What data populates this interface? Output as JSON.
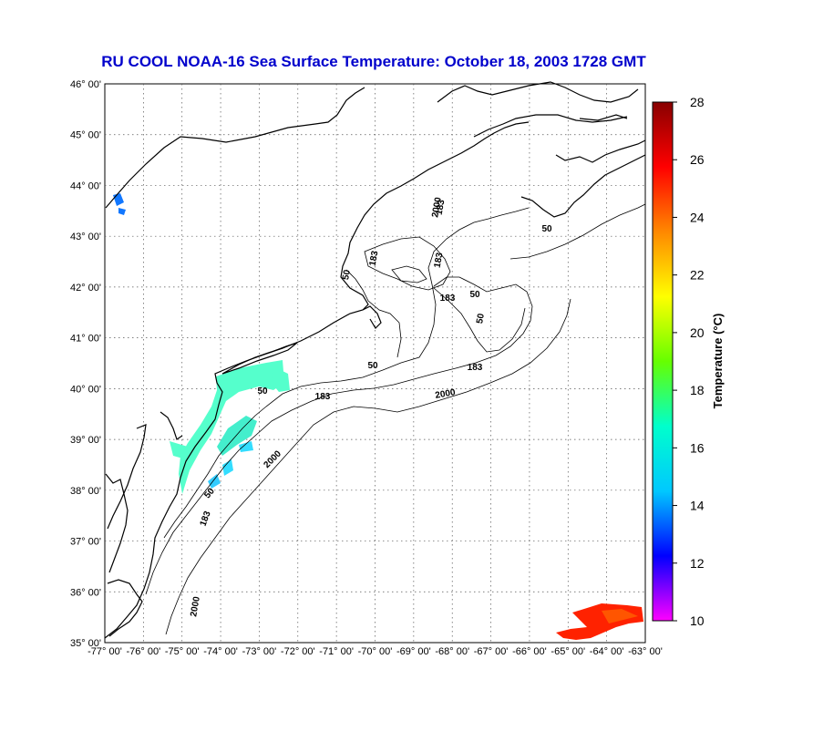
{
  "title": "RU COOL  NOAA-16  Sea Surface Temperature:  October 18, 2003 1728 GMT",
  "lat_labels": [
    "35° 00'",
    "36° 00'",
    "37° 00'",
    "38° 00'",
    "39° 00'",
    "40° 00'",
    "41° 00'",
    "42° 00'",
    "43° 00'",
    "44° 00'",
    "45° 00'",
    "46° 00'"
  ],
  "lon_labels": [
    "-77° 00'",
    "-76° 00'",
    "-75° 00'",
    "-74° 00'",
    "-73° 00'",
    "-72° 00'",
    "-71° 00'",
    "-70° 00'",
    "-69° 00'",
    "-68° 00'",
    "-67° 00'",
    "-66° 00'",
    "-65° 00'",
    "-64° 00'",
    "-63° 00'"
  ],
  "colorbar": {
    "label": "Temperature (°C)",
    "ticks": [
      "28",
      "26",
      "24",
      "22",
      "20",
      "18",
      "16",
      "14",
      "12",
      "10"
    ],
    "range": [
      10,
      28
    ],
    "colors": [
      "#ff00ff",
      "#0000ff",
      "#00c8ff",
      "#00ffcc",
      "#66ff00",
      "#ffff00",
      "#ff8800",
      "#ff0000",
      "#880000"
    ]
  },
  "isobath_labels": [
    "50",
    "183",
    "2000",
    "50",
    "183",
    "50",
    "183",
    "50",
    "183",
    "2000",
    "183",
    "50",
    "2000",
    "50",
    "183",
    "2000",
    "183",
    "50"
  ],
  "sst_colors": {
    "shelf": "#55ffcc",
    "warm_patch": "#ff2200",
    "cool_patch": "#1177ff"
  }
}
